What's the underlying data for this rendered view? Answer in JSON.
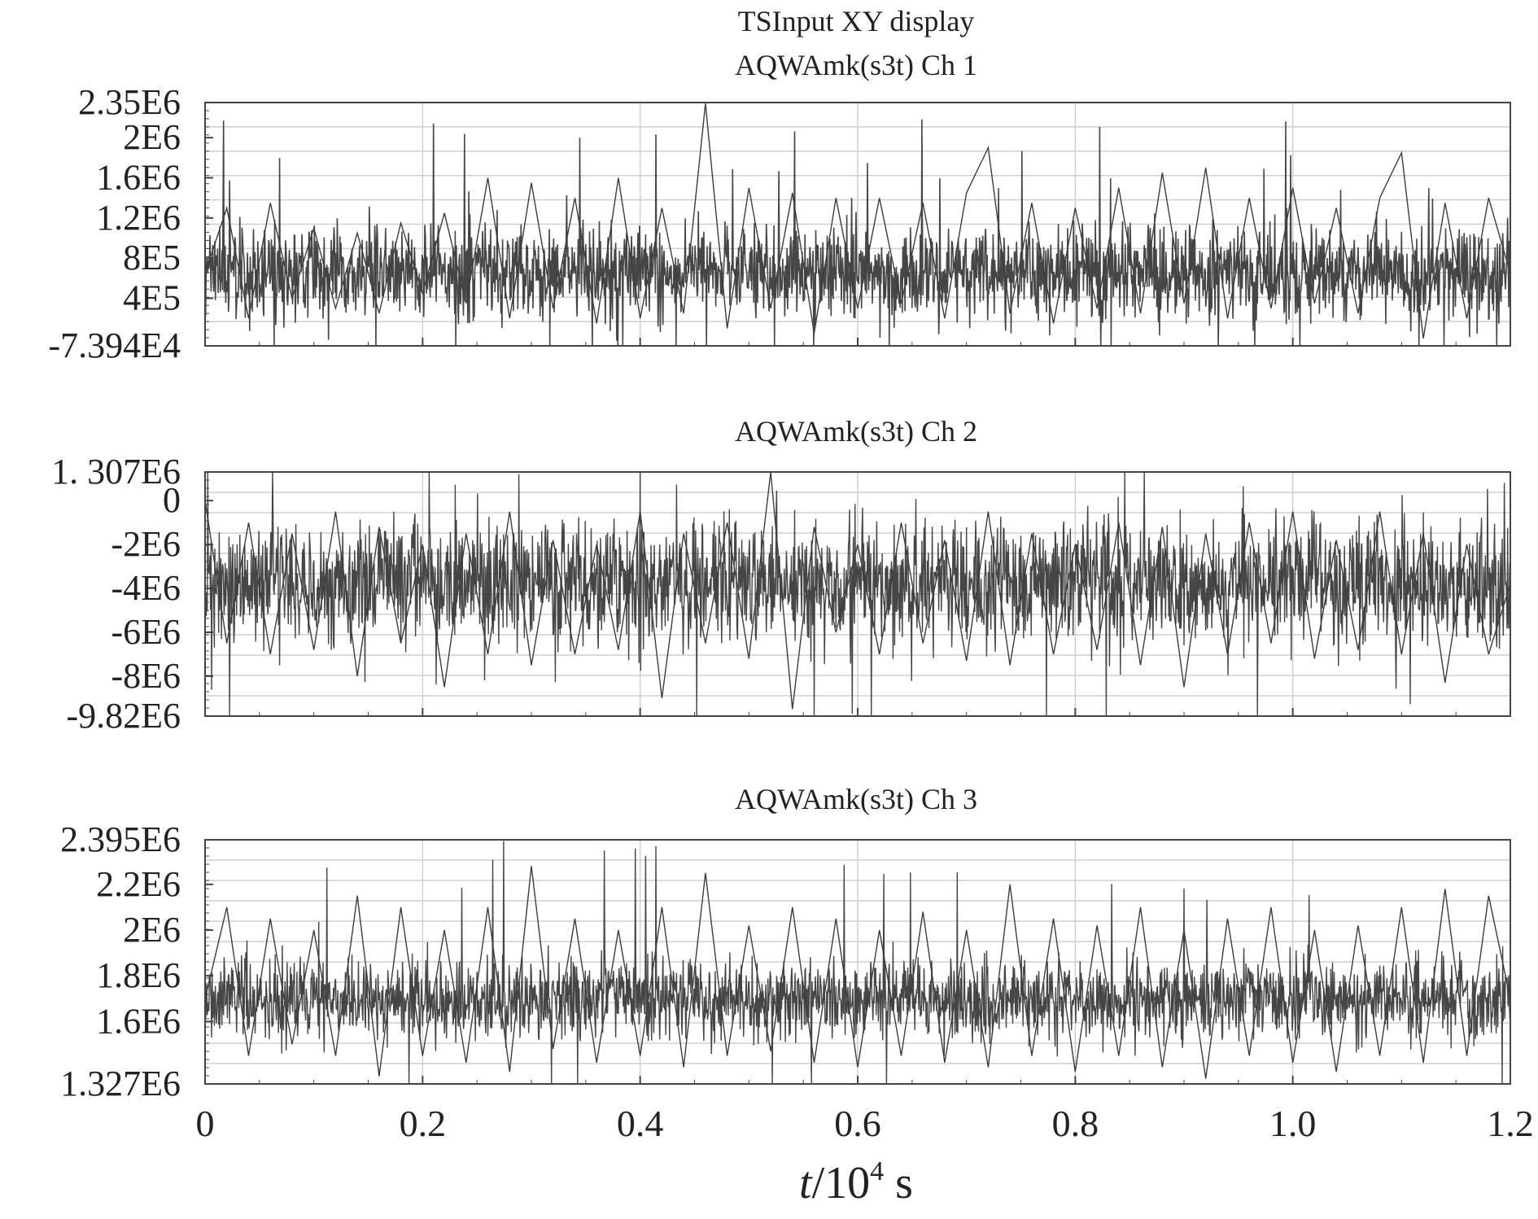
{
  "figure_title": "TSInput XY display",
  "x_axis": {
    "label_italic": "t",
    "label_rest": "/10",
    "label_sup": "4",
    "label_unit": " s",
    "ticks": [
      "0",
      "0.2",
      "0.4",
      "0.6",
      "0.8",
      "1.0",
      "1.2"
    ]
  },
  "colors": {
    "line": "#3c3c3c",
    "frame": "#444444",
    "grid": "#cfcfcf",
    "text": "#222222"
  },
  "chart_data": [
    {
      "type": "line",
      "title": "AQWAmk(s3t) Ch 1",
      "xlim": [
        0,
        1.2
      ],
      "ylim": [
        -73940,
        2350000
      ],
      "x_unit": "10^4 s",
      "ytick_labels": [
        "2.35E6",
        "2E6",
        "1.6E6",
        "1.2E6",
        "8E5",
        "4E5",
        "-7.394E4"
      ],
      "ytick_values": [
        2350000,
        2000000,
        1600000,
        1200000,
        800000,
        400000,
        -73940
      ],
      "grid": true,
      "approx_mean": 650000,
      "approx_range": [
        -73940,
        2350000
      ],
      "x": [
        0,
        0.02,
        0.04,
        0.06,
        0.08,
        0.1,
        0.12,
        0.14,
        0.16,
        0.18,
        0.2,
        0.22,
        0.24,
        0.26,
        0.28,
        0.3,
        0.32,
        0.34,
        0.36,
        0.38,
        0.4,
        0.42,
        0.44,
        0.46,
        0.48,
        0.5,
        0.52,
        0.54,
        0.56,
        0.58,
        0.6,
        0.62,
        0.64,
        0.66,
        0.68,
        0.7,
        0.72,
        0.74,
        0.76,
        0.78,
        0.8,
        0.82,
        0.84,
        0.86,
        0.88,
        0.9,
        0.92,
        0.94,
        0.96,
        0.98,
        1.0,
        1.02,
        1.04,
        1.06,
        1.08,
        1.1,
        1.12,
        1.14,
        1.16,
        1.18,
        1.2
      ],
      "y": [
        650000,
        1300000,
        200000,
        1350000,
        400000,
        1100000,
        300000,
        1050000,
        250000,
        1150000,
        450000,
        1250000,
        350000,
        1600000,
        200000,
        1550000,
        300000,
        1400000,
        150000,
        1600000,
        200000,
        1300000,
        250000,
        2340000,
        100000,
        1500000,
        300000,
        1450000,
        50000,
        1400000,
        300000,
        1400000,
        350000,
        1350000,
        200000,
        1450000,
        1900000,
        250000,
        1350000,
        150000,
        1300000,
        300000,
        1500000,
        250000,
        1650000,
        350000,
        1700000,
        200000,
        1400000,
        300000,
        1500000,
        350000,
        1300000,
        250000,
        1400000,
        1850000,
        0,
        1350000,
        200000,
        1400000,
        650000
      ]
    },
    {
      "type": "line",
      "title": "AQWAmk(s3t) Ch 2",
      "xlim": [
        0,
        1.2
      ],
      "ylim": [
        -9820000,
        1307000
      ],
      "x_unit": "10^4 s",
      "ytick_labels": [
        "1. 307E6",
        "0",
        "-2E6",
        "-4E6",
        "-6E6",
        "-8E6",
        "-9.82E6"
      ],
      "ytick_values": [
        1307000,
        0,
        -2000000,
        -4000000,
        -6000000,
        -8000000,
        -9820000
      ],
      "grid": true,
      "approx_mean": -3800000,
      "approx_range": [
        -9820000,
        1307000
      ],
      "x": [
        0,
        0.02,
        0.04,
        0.06,
        0.08,
        0.1,
        0.12,
        0.14,
        0.16,
        0.18,
        0.2,
        0.22,
        0.24,
        0.26,
        0.28,
        0.3,
        0.32,
        0.34,
        0.36,
        0.38,
        0.4,
        0.42,
        0.44,
        0.46,
        0.48,
        0.5,
        0.52,
        0.54,
        0.56,
        0.58,
        0.6,
        0.62,
        0.64,
        0.66,
        0.68,
        0.7,
        0.72,
        0.74,
        0.76,
        0.78,
        0.8,
        0.82,
        0.84,
        0.86,
        0.88,
        0.9,
        0.92,
        0.94,
        0.96,
        0.98,
        1.0,
        1.02,
        1.04,
        1.06,
        1.08,
        1.1,
        1.12,
        1.14,
        1.16,
        1.18,
        1.2
      ],
      "y": [
        0,
        -6500000,
        -1000000,
        -7000000,
        -1500000,
        -6800000,
        -500000,
        -8000000,
        -1200000,
        -6500000,
        -2000000,
        -8500000,
        -1500000,
        -7000000,
        -500000,
        -7500000,
        -1800000,
        -7000000,
        -2000000,
        -6800000,
        -500000,
        -9000000,
        -1500000,
        -6500000,
        -1000000,
        -7200000,
        1300000,
        -9500000,
        -1200000,
        -6000000,
        -2000000,
        -7000000,
        -1000000,
        -6500000,
        -1800000,
        -7300000,
        -500000,
        -7500000,
        -1500000,
        -7000000,
        -2000000,
        -6800000,
        -1000000,
        -7500000,
        -1200000,
        -8500000,
        -1500000,
        -7000000,
        -1000000,
        -6500000,
        -500000,
        -7200000,
        -1800000,
        -6800000,
        -500000,
        -7000000,
        -1500000,
        -8300000,
        -2000000,
        -7000000,
        -3800000
      ]
    },
    {
      "type": "line",
      "title": "AQWAmk(s3t) Ch 3",
      "xlim": [
        0,
        1.2
      ],
      "ylim": [
        1327000,
        2395000
      ],
      "x_unit": "10^4 s",
      "ytick_labels": [
        "2.395E6",
        "2.2E6",
        "2E6",
        "1.8E6",
        "1.6E6",
        "1.327E6"
      ],
      "ytick_values": [
        2395000,
        2200000,
        2000000,
        1800000,
        1600000,
        1327000
      ],
      "grid": true,
      "approx_mean": 1700000,
      "approx_range": [
        1327000,
        2395000
      ],
      "x": [
        0,
        0.02,
        0.04,
        0.06,
        0.08,
        0.1,
        0.12,
        0.14,
        0.16,
        0.18,
        0.2,
        0.22,
        0.24,
        0.26,
        0.28,
        0.3,
        0.32,
        0.34,
        0.36,
        0.38,
        0.4,
        0.42,
        0.44,
        0.46,
        0.48,
        0.5,
        0.52,
        0.54,
        0.56,
        0.58,
        0.6,
        0.62,
        0.64,
        0.66,
        0.68,
        0.7,
        0.72,
        0.74,
        0.76,
        0.78,
        0.8,
        0.82,
        0.84,
        0.86,
        0.88,
        0.9,
        0.92,
        0.94,
        0.96,
        0.98,
        1.0,
        1.02,
        1.04,
        1.06,
        1.08,
        1.1,
        1.12,
        1.14,
        1.16,
        1.18,
        1.2
      ],
      "y": [
        1700000,
        2100000,
        1450000,
        2050000,
        1500000,
        2000000,
        1450000,
        2150000,
        1360000,
        2100000,
        1450000,
        2000000,
        1420000,
        2100000,
        1380000,
        2280000,
        1480000,
        2050000,
        1420000,
        2000000,
        1450000,
        2100000,
        1400000,
        2250000,
        1450000,
        2020000,
        1470000,
        2100000,
        1420000,
        2050000,
        1400000,
        2000000,
        1450000,
        2080000,
        1420000,
        2000000,
        1400000,
        2200000,
        1450000,
        2050000,
        1380000,
        2020000,
        1450000,
        2100000,
        1400000,
        2000000,
        1350000,
        2050000,
        1450000,
        2100000,
        1420000,
        2000000,
        1380000,
        2020000,
        1450000,
        2100000,
        1420000,
        2180000,
        1450000,
        2150000,
        1700000
      ]
    }
  ]
}
